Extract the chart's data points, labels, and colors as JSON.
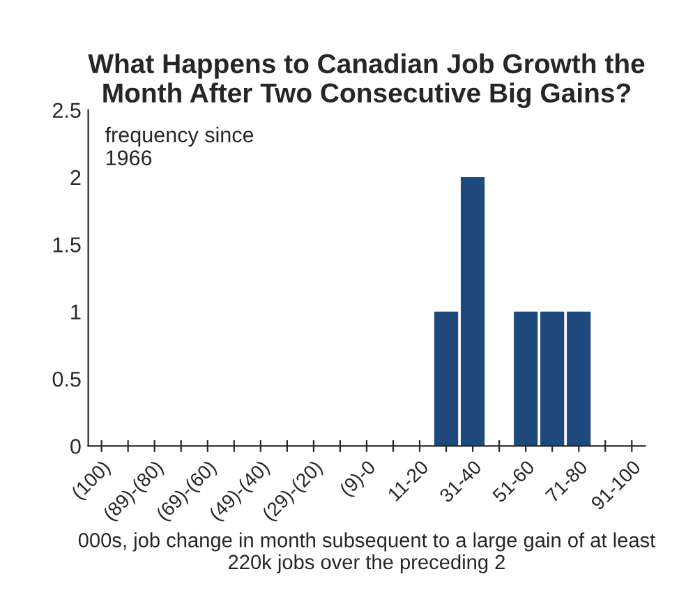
{
  "chart_data": {
    "type": "bar",
    "title": "What Happens to Canadian Job Growth the Month After Two Consecutive Big Gains?",
    "categories": [
      "(100)",
      null,
      "(89)-(80)",
      null,
      "(69)-(60)",
      null,
      "(49)-(40)",
      null,
      "(29)-(20)",
      null,
      "(9)-0",
      null,
      "11-20",
      null,
      "31-40",
      null,
      "51-60",
      null,
      "71-80",
      null,
      "91-100"
    ],
    "values": [
      0,
      0,
      0,
      0,
      0,
      0,
      0,
      0,
      0,
      0,
      0,
      0,
      0,
      1,
      2,
      0,
      1,
      1,
      1,
      0,
      0
    ],
    "color": "#1f497d",
    "ylim": [
      0,
      2.5
    ],
    "yticks": [
      0,
      0.5,
      1,
      1.5,
      2,
      2.5
    ],
    "xlabel": "000s, job change in month subsequent to a large gain of at least 220k jobs over the preceding 2",
    "annotations": [
      "frequency since\n1966"
    ],
    "grid": false
  }
}
